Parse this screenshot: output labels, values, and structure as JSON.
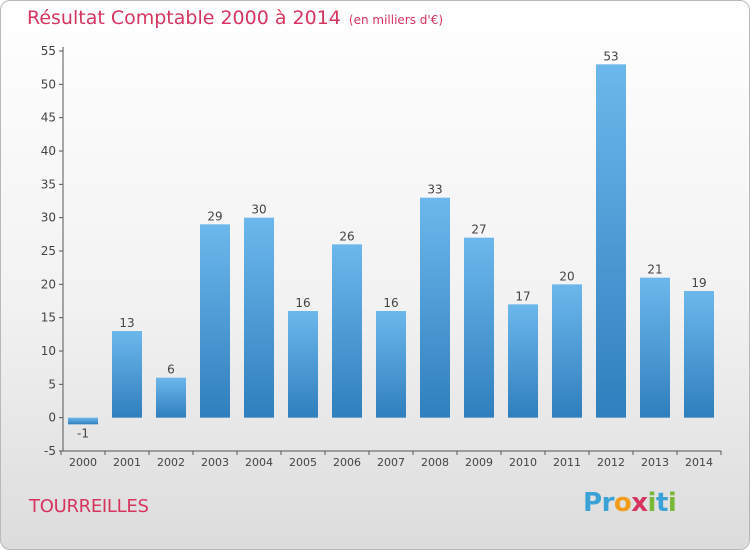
{
  "header": {
    "title": "Résultat Comptable 2000 à 2014",
    "unit": "(en milliers d'€)"
  },
  "footer": {
    "town": "TOURREILLES",
    "logo_letters": [
      "P",
      "r",
      "o",
      "x",
      "i",
      "t",
      "i"
    ]
  },
  "colors": {
    "title": "#d6355f",
    "bar_top": "#6cb8ec",
    "bar_bottom": "#2f7fbe",
    "axis": "#555555",
    "grid": "#d0d0d0",
    "logo": [
      "#3aa2d6",
      "#3aa2d6",
      "#f39b1a",
      "#d6355f",
      "#7ab83a",
      "#3aa2d6",
      "#7ab83a"
    ]
  },
  "chart_data": {
    "type": "bar",
    "title": "Résultat Comptable 2000 à 2014",
    "subtitle": "(en milliers d'€)",
    "xlabel": "",
    "ylabel": "",
    "categories": [
      "2000",
      "2001",
      "2002",
      "2003",
      "2004",
      "2005",
      "2006",
      "2007",
      "2008",
      "2009",
      "2010",
      "2011",
      "2012",
      "2013",
      "2014"
    ],
    "values": [
      -1,
      13,
      6,
      29,
      30,
      16,
      26,
      16,
      33,
      27,
      17,
      20,
      53,
      21,
      19
    ],
    "value_labels": [
      "-1",
      "13",
      "6",
      "29",
      "30",
      "16",
      "26",
      "16",
      "33",
      "27",
      "17",
      "20",
      "53",
      "21",
      "19"
    ],
    "ylim": [
      -5,
      55
    ],
    "yticks": [
      -5,
      0,
      5,
      10,
      15,
      20,
      25,
      30,
      35,
      40,
      45,
      50,
      55
    ],
    "ytick_labels": [
      "-5",
      "0",
      "5",
      "10",
      "15",
      "20",
      "25",
      "30",
      "35",
      "40",
      "45",
      "50",
      "55"
    ],
    "grid": false,
    "legend": "none"
  }
}
